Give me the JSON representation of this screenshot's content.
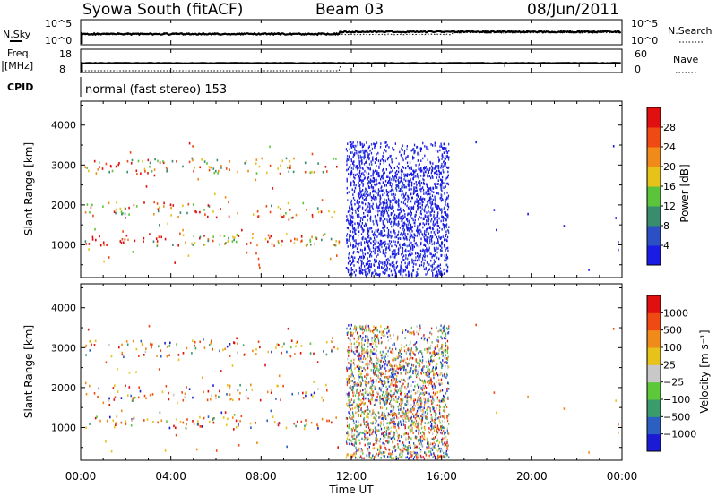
{
  "header": {
    "site": "Syowa South (fitACF)",
    "beam": "Beam 03",
    "date": "08/Jun/2011"
  },
  "aux_panel": {
    "nsky_label": "N.Sky",
    "nsearch_label": "N.Search",
    "noise_ticks_left": [
      "10^5",
      "10^0"
    ],
    "noise_ticks_right": [
      "10^5",
      "10^0"
    ],
    "freq_label_1": "Freq.",
    "freq_label_2": "[MHz]",
    "freq_ticks": [
      "18",
      "8"
    ],
    "nave_label": "Nave",
    "nave_ticks": [
      "60",
      "0"
    ],
    "cpid_label": "CPID",
    "cpid_text": "normal (fast stereo) 153"
  },
  "chart_data": [
    {
      "type": "heatmap",
      "name": "Power",
      "ylabel": "Slant Range [km]",
      "xlabel": "Time UT",
      "xlim_hours": [
        0,
        24
      ],
      "ylim_km": [
        180,
        4600
      ],
      "x_tick_labels": [
        "00:00",
        "04:00",
        "08:00",
        "12:00",
        "16:00",
        "20:00",
        "00:00"
      ],
      "y_ticks": [
        1000,
        2000,
        3000,
        4000
      ],
      "colorbar": {
        "label": "Power [dB]",
        "ticks": [
          "4",
          "8",
          "12",
          "16",
          "20",
          "24",
          "28"
        ],
        "colors": [
          "#1b1be6",
          "#2c4fc4",
          "#3a8c6e",
          "#5cc43a",
          "#e6c21b",
          "#f08a1b",
          "#ef4a14",
          "#e01010"
        ]
      },
      "regions": [
        {
          "t_range": [
            0,
            11.5
          ],
          "r_range": [
            400,
            3600
          ],
          "density": "sparse",
          "dominant_power_db": [
            8,
            28
          ]
        },
        {
          "t_range": [
            11.7,
            16.3
          ],
          "r_range": [
            200,
            3600
          ],
          "density": "dense",
          "dominant_power_db": [
            0,
            8
          ]
        }
      ]
    },
    {
      "type": "heatmap",
      "name": "Velocity",
      "ylabel": "Slant Range [km]",
      "xlabel": "Time UT",
      "xlim_hours": [
        0,
        24
      ],
      "ylim_km": [
        180,
        4600
      ],
      "x_tick_labels": [
        "00:00",
        "04:00",
        "08:00",
        "12:00",
        "16:00",
        "20:00",
        "00:00"
      ],
      "y_ticks": [
        1000,
        2000,
        3000,
        4000
      ],
      "colorbar": {
        "label": "Velocity [m s⁻¹]",
        "ticks": [
          "1000",
          "500",
          "100",
          "25",
          "−25",
          "−100",
          "−500",
          "−1000"
        ],
        "colors": [
          "#1b1bd6",
          "#2c60c0",
          "#3a9c6a",
          "#5cc83a",
          "#c8c8c8",
          "#e6c21b",
          "#f08a1b",
          "#ef4a14",
          "#e01010"
        ]
      }
    }
  ]
}
